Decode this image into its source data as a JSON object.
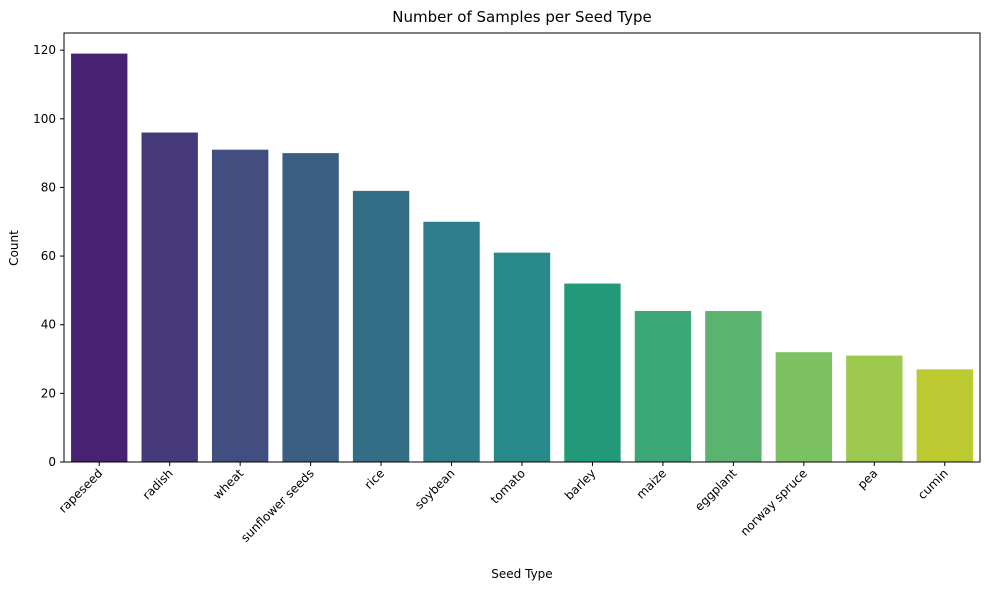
{
  "chart_data": {
    "type": "bar",
    "title": "Number of Samples per Seed Type",
    "xlabel": "Seed Type",
    "ylabel": "Count",
    "categories": [
      "rapeseed",
      "radish",
      "wheat",
      "sunflower seeds",
      "rice",
      "soybean",
      "tomato",
      "barley",
      "maize",
      "eggplant",
      "norway spruce",
      "pea",
      "cumin"
    ],
    "values": [
      119,
      96,
      91,
      90,
      79,
      70,
      61,
      52,
      44,
      44,
      32,
      31,
      27
    ],
    "colors": [
      "#482173",
      "#463a7b",
      "#424e7f",
      "#3b5f82",
      "#336e86",
      "#2d7e8a",
      "#27898a",
      "#229a79",
      "#3ca776",
      "#5ab46f",
      "#7cc262",
      "#9bc84d",
      "#bdc930"
    ],
    "ylim": [
      0,
      125
    ],
    "yticks": [
      0,
      20,
      40,
      60,
      80,
      100,
      120
    ],
    "grid": false,
    "legend": "none"
  }
}
